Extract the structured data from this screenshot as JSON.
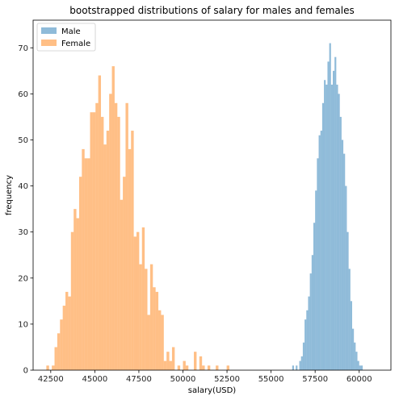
{
  "chart_data": {
    "type": "histogram",
    "title": "bootstrapped distributions of salary for males and females",
    "xlabel": "salary(USD)",
    "ylabel": "frequency",
    "xlim": [
      41500,
      61800
    ],
    "ylim": [
      0,
      76
    ],
    "xticks": [
      42500,
      45000,
      47500,
      50000,
      52500,
      55000,
      57500,
      60000
    ],
    "yticks": [
      0,
      10,
      20,
      30,
      40,
      50,
      60,
      70
    ],
    "legend": "top-left",
    "grid": false,
    "series": [
      {
        "name": "Male",
        "color": "#1f77b4",
        "alpha": 0.5,
        "bin_start": 56200,
        "bin_width": 100,
        "counts": [
          1,
          0,
          1,
          0,
          2,
          3,
          6,
          11,
          13,
          16,
          21,
          25,
          32,
          39,
          46,
          51,
          52,
          58,
          63,
          62,
          67,
          71,
          62,
          65,
          68,
          62,
          60,
          55,
          50,
          47,
          40,
          30,
          22,
          15,
          9,
          6,
          4,
          2,
          1,
          1
        ]
      },
      {
        "name": "Female",
        "color": "#ff7f0e",
        "alpha": 0.5,
        "bin_start": 42250,
        "bin_width": 155,
        "counts": [
          1,
          0,
          1,
          5,
          8,
          11,
          14,
          17,
          16,
          30,
          35,
          33,
          42,
          48,
          46,
          46,
          56,
          56,
          58,
          64,
          55,
          49,
          52,
          60,
          66,
          58,
          55,
          37,
          42,
          58,
          48,
          52,
          29,
          30,
          23,
          31,
          22,
          12,
          23,
          18,
          17,
          13,
          12,
          2,
          4,
          2,
          5,
          0,
          1,
          0,
          2,
          1,
          0,
          0,
          4,
          0,
          3,
          1,
          0,
          1,
          0,
          0,
          1,
          0,
          0,
          0,
          1
        ]
      }
    ]
  }
}
